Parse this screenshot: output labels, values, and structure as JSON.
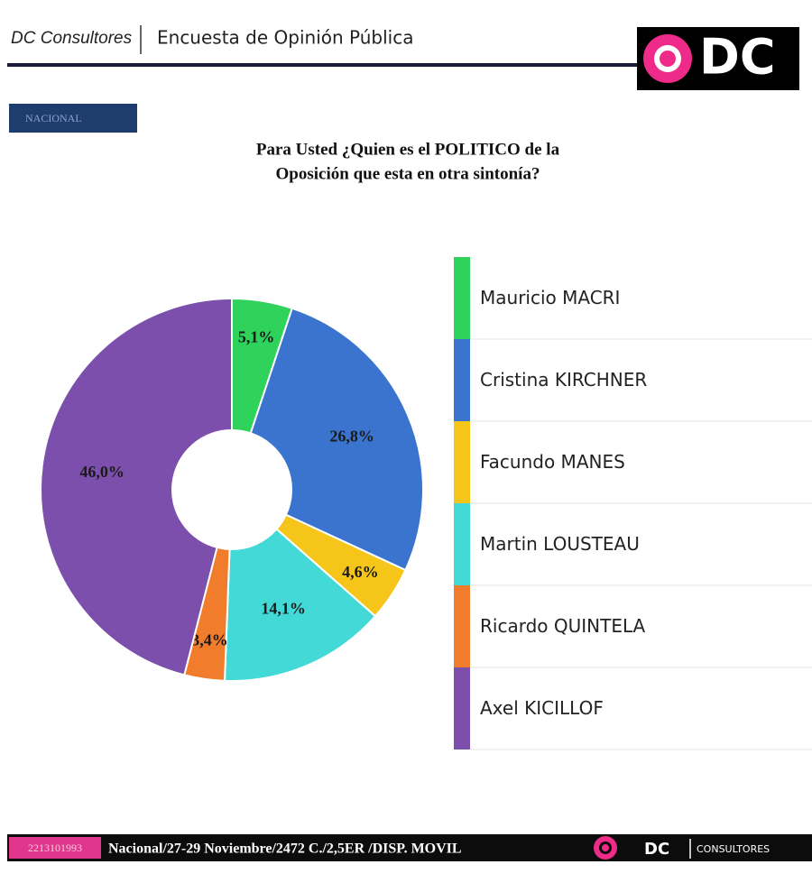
{
  "header": {
    "brand": "DC Consultores",
    "title": "Encuesta de Opinión Pública",
    "logo": "DC"
  },
  "badge": "NACIONAL",
  "chart_data": {
    "type": "pie",
    "title": [
      "Para Usted ¿Quien es el POLITICO de la",
      "Oposición que esta en otra sintonía?"
    ],
    "categories": [
      "Mauricio MACRI",
      "Cristina KIRCHNER",
      "Facundo MANES",
      "Martin LOUSTEAU",
      "Ricardo QUINTELA",
      "Axel KICILLOF"
    ],
    "values": [
      5.1,
      26.8,
      4.6,
      14.1,
      3.4,
      46.0
    ],
    "value_labels": [
      "5,1%",
      "26,8%",
      "4,6%",
      "14,1%",
      "3,4%",
      "46,0%"
    ],
    "colors": [
      "#2fd35b",
      "#3a74cf",
      "#f6c51a",
      "#43d9d6",
      "#f07c2c",
      "#7b4fab"
    ]
  },
  "footer": {
    "phone": "2213101993",
    "info": "Nacional/27-29 Noviembre/2472 C./2,5ER /DISP. MOVIL",
    "logo": "DC",
    "logo_sub": "CONSULTORES"
  }
}
